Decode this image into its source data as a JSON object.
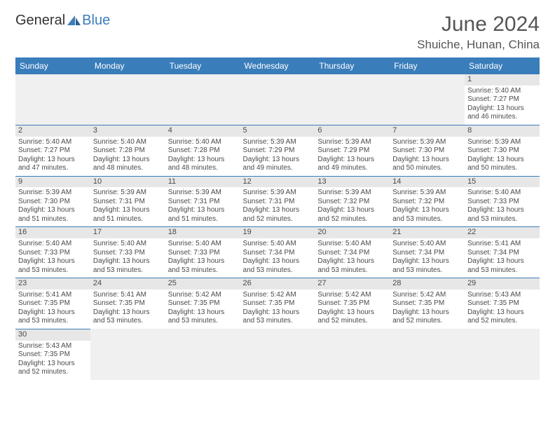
{
  "logo": {
    "text1": "General",
    "text2": "Blue"
  },
  "title": "June 2024",
  "location": "Shuiche, Hunan, China",
  "colors": {
    "header_bg": "#3a7dbb",
    "header_text": "#ffffff",
    "day_strip": "#e7e7e7",
    "border": "#3a7dbb",
    "text": "#4a4a4a"
  },
  "weekdays": [
    "Sunday",
    "Monday",
    "Tuesday",
    "Wednesday",
    "Thursday",
    "Friday",
    "Saturday"
  ],
  "weeks": [
    [
      null,
      null,
      null,
      null,
      null,
      null,
      {
        "day": "1",
        "sunrise": "5:40 AM",
        "sunset": "7:27 PM",
        "daylight": "13 hours and 46 minutes."
      }
    ],
    [
      {
        "day": "2",
        "sunrise": "5:40 AM",
        "sunset": "7:27 PM",
        "daylight": "13 hours and 47 minutes."
      },
      {
        "day": "3",
        "sunrise": "5:40 AM",
        "sunset": "7:28 PM",
        "daylight": "13 hours and 48 minutes."
      },
      {
        "day": "4",
        "sunrise": "5:40 AM",
        "sunset": "7:28 PM",
        "daylight": "13 hours and 48 minutes."
      },
      {
        "day": "5",
        "sunrise": "5:39 AM",
        "sunset": "7:29 PM",
        "daylight": "13 hours and 49 minutes."
      },
      {
        "day": "6",
        "sunrise": "5:39 AM",
        "sunset": "7:29 PM",
        "daylight": "13 hours and 49 minutes."
      },
      {
        "day": "7",
        "sunrise": "5:39 AM",
        "sunset": "7:30 PM",
        "daylight": "13 hours and 50 minutes."
      },
      {
        "day": "8",
        "sunrise": "5:39 AM",
        "sunset": "7:30 PM",
        "daylight": "13 hours and 50 minutes."
      }
    ],
    [
      {
        "day": "9",
        "sunrise": "5:39 AM",
        "sunset": "7:30 PM",
        "daylight": "13 hours and 51 minutes."
      },
      {
        "day": "10",
        "sunrise": "5:39 AM",
        "sunset": "7:31 PM",
        "daylight": "13 hours and 51 minutes."
      },
      {
        "day": "11",
        "sunrise": "5:39 AM",
        "sunset": "7:31 PM",
        "daylight": "13 hours and 51 minutes."
      },
      {
        "day": "12",
        "sunrise": "5:39 AM",
        "sunset": "7:31 PM",
        "daylight": "13 hours and 52 minutes."
      },
      {
        "day": "13",
        "sunrise": "5:39 AM",
        "sunset": "7:32 PM",
        "daylight": "13 hours and 52 minutes."
      },
      {
        "day": "14",
        "sunrise": "5:39 AM",
        "sunset": "7:32 PM",
        "daylight": "13 hours and 53 minutes."
      },
      {
        "day": "15",
        "sunrise": "5:40 AM",
        "sunset": "7:33 PM",
        "daylight": "13 hours and 53 minutes."
      }
    ],
    [
      {
        "day": "16",
        "sunrise": "5:40 AM",
        "sunset": "7:33 PM",
        "daylight": "13 hours and 53 minutes."
      },
      {
        "day": "17",
        "sunrise": "5:40 AM",
        "sunset": "7:33 PM",
        "daylight": "13 hours and 53 minutes."
      },
      {
        "day": "18",
        "sunrise": "5:40 AM",
        "sunset": "7:33 PM",
        "daylight": "13 hours and 53 minutes."
      },
      {
        "day": "19",
        "sunrise": "5:40 AM",
        "sunset": "7:34 PM",
        "daylight": "13 hours and 53 minutes."
      },
      {
        "day": "20",
        "sunrise": "5:40 AM",
        "sunset": "7:34 PM",
        "daylight": "13 hours and 53 minutes."
      },
      {
        "day": "21",
        "sunrise": "5:40 AM",
        "sunset": "7:34 PM",
        "daylight": "13 hours and 53 minutes."
      },
      {
        "day": "22",
        "sunrise": "5:41 AM",
        "sunset": "7:34 PM",
        "daylight": "13 hours and 53 minutes."
      }
    ],
    [
      {
        "day": "23",
        "sunrise": "5:41 AM",
        "sunset": "7:35 PM",
        "daylight": "13 hours and 53 minutes."
      },
      {
        "day": "24",
        "sunrise": "5:41 AM",
        "sunset": "7:35 PM",
        "daylight": "13 hours and 53 minutes."
      },
      {
        "day": "25",
        "sunrise": "5:42 AM",
        "sunset": "7:35 PM",
        "daylight": "13 hours and 53 minutes."
      },
      {
        "day": "26",
        "sunrise": "5:42 AM",
        "sunset": "7:35 PM",
        "daylight": "13 hours and 53 minutes."
      },
      {
        "day": "27",
        "sunrise": "5:42 AM",
        "sunset": "7:35 PM",
        "daylight": "13 hours and 52 minutes."
      },
      {
        "day": "28",
        "sunrise": "5:42 AM",
        "sunset": "7:35 PM",
        "daylight": "13 hours and 52 minutes."
      },
      {
        "day": "29",
        "sunrise": "5:43 AM",
        "sunset": "7:35 PM",
        "daylight": "13 hours and 52 minutes."
      }
    ],
    [
      {
        "day": "30",
        "sunrise": "5:43 AM",
        "sunset": "7:35 PM",
        "daylight": "13 hours and 52 minutes."
      },
      null,
      null,
      null,
      null,
      null,
      null
    ]
  ],
  "labels": {
    "sunrise": "Sunrise:",
    "sunset": "Sunset:",
    "daylight": "Daylight:"
  }
}
